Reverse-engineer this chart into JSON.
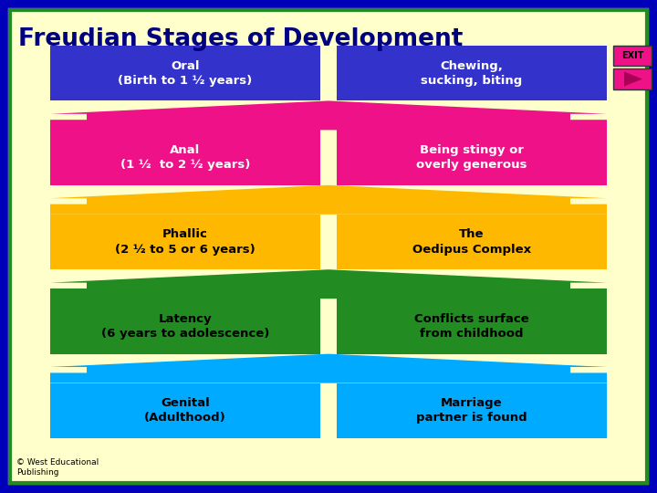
{
  "title": "Freudian Stages of Development",
  "title_color": "#000080",
  "bg_color": "#FFFFCC",
  "border_outer_color": "#0000BB",
  "border_inner_color": "#228B22",
  "stages": [
    {
      "left_text": "Genital\n(Adulthood)",
      "right_text": "Marriage\npartner is found",
      "box_color": "#00AAFF",
      "text_color": "#000000",
      "left_align": "left",
      "right_align": "right"
    },
    {
      "left_text": "Latency\n(6 years to adolescence)",
      "right_text": "Conflicts surface\nfrom childhood",
      "box_color": "#228B22",
      "text_color": "#000000",
      "left_align": "center",
      "right_align": "right"
    },
    {
      "left_text": "Phallic\n(2 ½ to 5 or 6 years)",
      "right_text": "The\nOedipus Complex",
      "box_color": "#FFB800",
      "text_color": "#000000",
      "left_align": "center",
      "right_align": "center"
    },
    {
      "left_text": "Anal\n(1 ½  to 2 ½ years)",
      "right_text": "Being stingy or\noverly generous",
      "box_color": "#EE1188",
      "text_color": "#FFFFFF",
      "left_align": "center",
      "right_align": "right"
    },
    {
      "left_text": "Oral\n(Birth to 1 ½ years)",
      "right_text": "Chewing,\nsucking, biting",
      "box_color": "#3333CC",
      "text_color": "#FFFFFF",
      "left_align": "center",
      "right_align": "center"
    }
  ],
  "copyright": "© West Educational\nPublishing",
  "exit_color": "#EE1188"
}
